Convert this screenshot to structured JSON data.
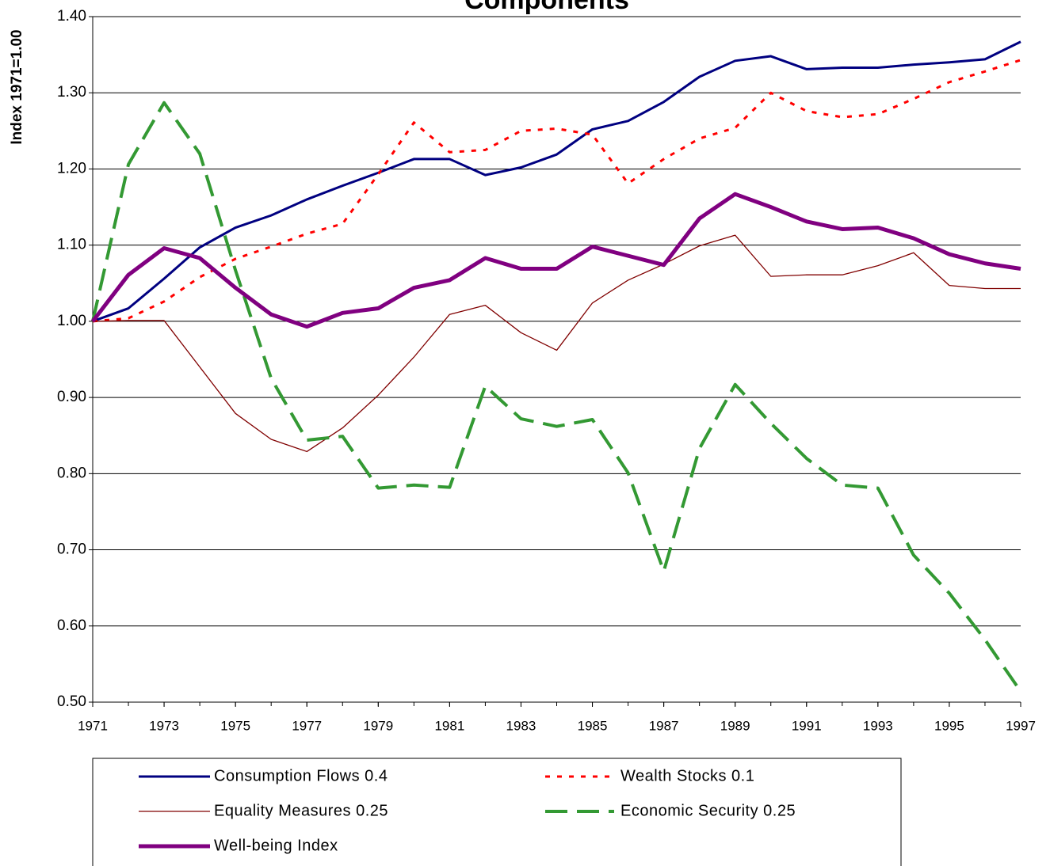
{
  "chart_data": {
    "type": "line",
    "title": "Components",
    "y_label": "Index 1971=1.00",
    "x": [
      1971,
      1972,
      1973,
      1974,
      1975,
      1976,
      1977,
      1978,
      1979,
      1980,
      1981,
      1982,
      1983,
      1984,
      1985,
      1986,
      1987,
      1988,
      1989,
      1990,
      1991,
      1992,
      1993,
      1994,
      1995,
      1996,
      1997
    ],
    "xlim": [
      1971,
      1997
    ],
    "xticks": [
      1971,
      1973,
      1975,
      1977,
      1979,
      1981,
      1983,
      1985,
      1987,
      1989,
      1991,
      1993,
      1995,
      1997
    ],
    "ylim": [
      0.5,
      1.4
    ],
    "yticks": [
      {
        "value": 0.5,
        "label": "0.50"
      },
      {
        "value": 0.6,
        "label": "0.60"
      },
      {
        "value": 0.7,
        "label": "0.70"
      },
      {
        "value": 0.8,
        "label": "0.80"
      },
      {
        "value": 0.9,
        "label": "0.90"
      },
      {
        "value": 1.0,
        "label": "1.00"
      },
      {
        "value": 1.1,
        "label": "1.10"
      },
      {
        "value": 1.2,
        "label": "1.20"
      },
      {
        "value": 1.3,
        "label": "1.30"
      },
      {
        "value": 1.4,
        "label": "1.40"
      }
    ],
    "grid": true,
    "legend": "bottom",
    "series": [
      {
        "name": "Consumption Flows 0.4",
        "color": "#000080",
        "line_style": "solid",
        "line_width": 3,
        "values": [
          1.0,
          1.017,
          1.056,
          1.097,
          1.123,
          1.139,
          1.16,
          1.178,
          1.195,
          1.213,
          1.213,
          1.192,
          1.202,
          1.219,
          1.252,
          1.263,
          1.288,
          1.321,
          1.342,
          1.348,
          1.331,
          1.333,
          1.333,
          1.337,
          1.34,
          1.344,
          1.367
        ]
      },
      {
        "name": "Wealth Stocks 0.1",
        "color": "#ff0000",
        "line_style": "dotted",
        "line_width": 3,
        "values": [
          1.0,
          1.004,
          1.026,
          1.058,
          1.082,
          1.098,
          1.115,
          1.128,
          1.193,
          1.261,
          1.222,
          1.225,
          1.25,
          1.253,
          1.245,
          1.181,
          1.213,
          1.24,
          1.254,
          1.3,
          1.276,
          1.268,
          1.272,
          1.292,
          1.314,
          1.328,
          1.343
        ]
      },
      {
        "name": "Equality Measures 0.25",
        "color": "#800000",
        "line_style": "solid",
        "line_width": 1.3,
        "values": [
          1.0,
          1.001,
          1.001,
          0.94,
          0.879,
          0.845,
          0.829,
          0.86,
          0.903,
          0.953,
          1.009,
          1.021,
          0.985,
          0.962,
          1.024,
          1.054,
          1.075,
          1.099,
          1.113,
          1.059,
          1.061,
          1.061,
          1.073,
          1.09,
          1.047,
          1.043,
          1.043
        ]
      },
      {
        "name": "Economic Security 0.25",
        "color": "#339933",
        "line_style": "dashed",
        "line_width": 4,
        "values": [
          1.0,
          1.206,
          1.287,
          1.22,
          1.067,
          0.925,
          0.844,
          0.849,
          0.781,
          0.785,
          0.782,
          0.915,
          0.872,
          0.862,
          0.871,
          0.801,
          0.672,
          0.833,
          0.917,
          0.866,
          0.82,
          0.785,
          0.781,
          0.693,
          0.643,
          0.582,
          0.514
        ]
      },
      {
        "name": "Well-being Index",
        "color": "#800080",
        "line_style": "solid",
        "line_width": 5,
        "values": [
          1.0,
          1.061,
          1.096,
          1.083,
          1.044,
          1.009,
          0.993,
          1.011,
          1.017,
          1.044,
          1.054,
          1.083,
          1.069,
          1.069,
          1.098,
          1.086,
          1.074,
          1.135,
          1.167,
          1.15,
          1.131,
          1.121,
          1.123,
          1.109,
          1.088,
          1.076,
          1.069
        ]
      }
    ]
  }
}
